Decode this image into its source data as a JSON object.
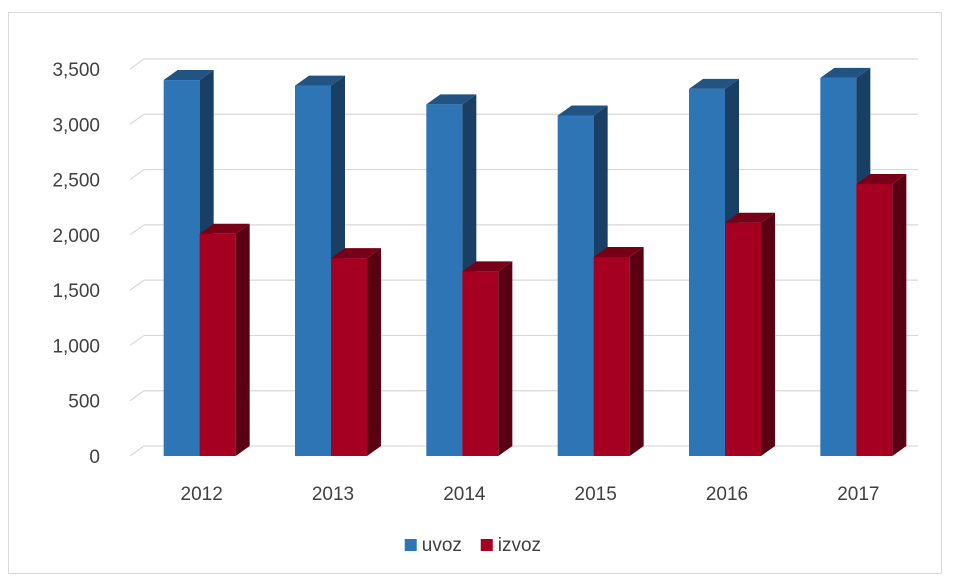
{
  "chart_data": {
    "type": "bar",
    "categories": [
      "2012",
      "2013",
      "2014",
      "2015",
      "2016",
      "2017"
    ],
    "series": [
      {
        "name": "uvoz",
        "values": [
          3400,
          3350,
          3180,
          3080,
          3320,
          3420
        ],
        "color": "#2e75b6"
      },
      {
        "name": "izvoz",
        "values": [
          2010,
          1790,
          1670,
          1800,
          2110,
          2460
        ],
        "color": "#a50021"
      }
    ],
    "title": "",
    "xlabel": "",
    "ylabel": "",
    "ylim": [
      0,
      3500
    ],
    "yticks": [
      "0",
      "500",
      "1,000",
      "1,500",
      "2,000",
      "2,500",
      "3,000",
      "3,500"
    ],
    "ytick_values": [
      0,
      500,
      1000,
      1500,
      2000,
      2500,
      3000,
      3500
    ],
    "grid": true,
    "style": "3d-column",
    "legend_position": "bottom"
  }
}
